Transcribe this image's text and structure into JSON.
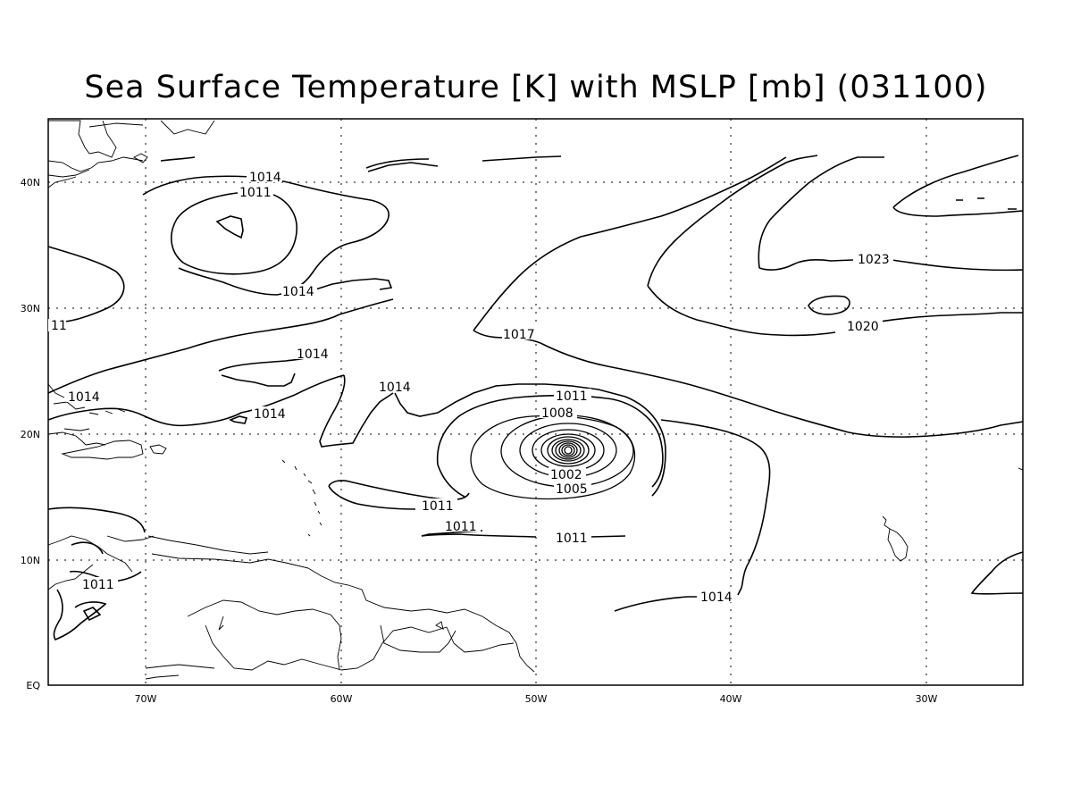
{
  "title": "Sea Surface Temperature [K] with MSLP [mb] (031100)",
  "axes": {
    "x_ticks": [
      "70W",
      "60W",
      "50W",
      "40W",
      "30W"
    ],
    "y_ticks": [
      "EQ",
      "10N",
      "20N",
      "30N",
      "40N"
    ]
  },
  "contour_labels": {
    "c1014_nw": "1014",
    "c1011_nw": "1011",
    "c1014_low": "1014",
    "c1017": "1017",
    "c1023": "1023",
    "c1020": "1020",
    "c1014_mid": "1014",
    "c1014_gulf": "1014",
    "c1014_bah": "1014",
    "c1014_ant": "1014",
    "c1011_outer": "1011",
    "c1008": "1008",
    "c1002": "1002",
    "c1005": "1005",
    "c1011_a": "1011",
    "c1011_b": "1011",
    "c1011_c": "1011",
    "c1014_s": "1014",
    "c1011_sa": "1011",
    "c11_edge": "11"
  },
  "storm": {
    "center_lon": "48.5W",
    "center_lat": "18.5N"
  }
}
